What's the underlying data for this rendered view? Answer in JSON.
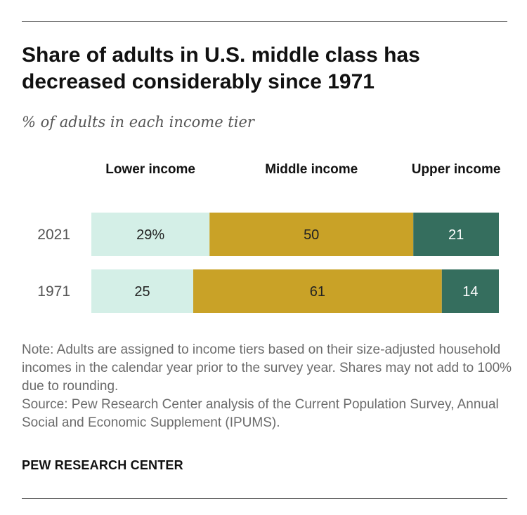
{
  "title": "Share of adults in U.S. middle class has decreased considerably since 1971",
  "subtitle": "% of adults in each income tier",
  "note": "Note: Adults are assigned to income tiers based on their size-adjusted household incomes in the calendar year prior to the survey year. Shares may not add to 100% due to rounding.",
  "source": "Source: Pew Research Center analysis of the Current Population Survey, Annual Social and Economic Supplement (IPUMS).",
  "brand": "PEW RESEARCH CENTER",
  "chart_data": {
    "type": "bar",
    "orientation": "horizontal-stacked",
    "title": "Share of adults in U.S. middle class has decreased considerably since 1971",
    "subtitle": "% of adults in each income tier",
    "categories": [
      "2021",
      "1971"
    ],
    "series": [
      {
        "name": "Lower income",
        "values": [
          29,
          25
        ],
        "labels": [
          "29%",
          "25"
        ],
        "color": "#d4efe7",
        "label_color": "#222222"
      },
      {
        "name": "Middle income",
        "values": [
          50,
          61
        ],
        "labels": [
          "50",
          "61"
        ],
        "color": "#c9a227",
        "label_color": "#222222"
      },
      {
        "name": "Upper income",
        "values": [
          21,
          14
        ],
        "labels": [
          "21",
          "14"
        ],
        "color": "#356e5e",
        "label_color": "#ffffff"
      }
    ],
    "xlim": [
      0,
      100
    ],
    "legend": "top",
    "grid": false
  }
}
